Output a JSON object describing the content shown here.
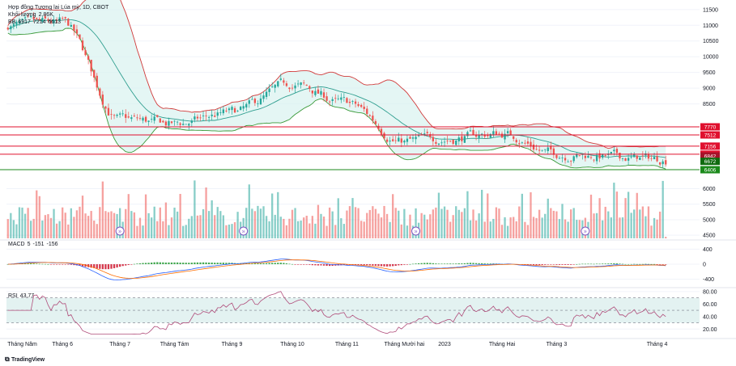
{
  "legend": {
    "title": "Hợp đồng Tương lai Lúa mỳ, 1D, CBOT",
    "volume_label": "Khối lượng",
    "volume_value": "2.86K",
    "bb_label": "BB",
    "bb_values": [
      "6917",
      "7214",
      "6613"
    ],
    "macd_label": "MACD",
    "macd_values": [
      "5",
      "-151",
      "-156"
    ],
    "rsi_label": "RSI",
    "rsi_value": "43.77"
  },
  "branding": {
    "logo_text": "TradingView"
  },
  "colors": {
    "up": "#26a69a",
    "down": "#ef5350",
    "bb_basis": "#2f9e8f",
    "bb_upper": "#d03a3a",
    "bb_lower": "#3a9a3a",
    "bb_fill": "#d9f2ef",
    "hline_red": "#e0102e",
    "hline_green": "#1b8a1b",
    "macd_line": "#2962ff",
    "signal_line": "#ff6d00",
    "rsi_line": "#b04c7a",
    "rsi_band": "#e3f2f1"
  },
  "chart_data": [
    {
      "type": "candlestick",
      "name": "Hợp đồng Tương lai Lúa mỳ, 1D, CBOT",
      "x_ticks": [
        "Tháng Năm",
        "Tháng 6",
        "Tháng 7",
        "Tháng Tám",
        "Tháng 9",
        "Tháng 10",
        "Tháng 11",
        "Tháng Mười hai",
        "2023",
        "Tháng Hai",
        "Tháng 3",
        "Tháng 4"
      ],
      "y_ticks": [
        "11500",
        "11000",
        "10500",
        "10000",
        "9500",
        "9000",
        "8500"
      ],
      "ylim": [
        6150,
        11650
      ],
      "price_levels": [
        {
          "label": "7770",
          "value": 7770,
          "color": "red"
        },
        {
          "label": "7512",
          "value": 7512,
          "color": "red"
        },
        {
          "label": "7156",
          "value": 7156,
          "color": "red"
        },
        {
          "label": "6900",
          "value": 6900,
          "color": "red"
        },
        {
          "label": "6842",
          "value": 6842,
          "color": "darkred"
        },
        {
          "label": "6672",
          "value": 6672,
          "color": "darkgreen"
        },
        {
          "label": "6406",
          "value": 6406,
          "color": "green"
        }
      ],
      "anchors": [
        {
          "month": "Tháng Năm",
          "price": 11000
        },
        {
          "month": "Tháng 6",
          "price": 11050
        },
        {
          "month": "Tháng 7",
          "price": 8000
        },
        {
          "month": "Tháng Tám",
          "price": 7850
        },
        {
          "month": "Tháng 9",
          "price": 8200
        },
        {
          "month": "Tháng 10",
          "price": 9100
        },
        {
          "month": "Tháng 11",
          "price": 8500
        },
        {
          "month": "Tháng Mười hai",
          "price": 7300
        },
        {
          "month": "2023",
          "price": 7400
        },
        {
          "month": "Tháng Hai",
          "price": 7550
        },
        {
          "month": "Tháng 3",
          "price": 6900
        },
        {
          "month": "Tháng 4",
          "price": 6750
        }
      ]
    },
    {
      "type": "bar",
      "name": "Khối lượng",
      "y_ticks": [
        "6000",
        "5500",
        "5000",
        "4500"
      ],
      "ylim": [
        4400,
        6300
      ]
    },
    {
      "type": "line",
      "name": "MACD",
      "y_ticks": [
        "400",
        "0",
        "-400"
      ],
      "ylim": [
        -600,
        600
      ]
    },
    {
      "type": "line",
      "name": "RSI",
      "y_ticks": [
        "80.00",
        "60.00",
        "40.00",
        "20.00"
      ],
      "ylim": [
        10,
        85
      ],
      "bands": [
        30,
        70
      ],
      "mid": 50
    }
  ]
}
